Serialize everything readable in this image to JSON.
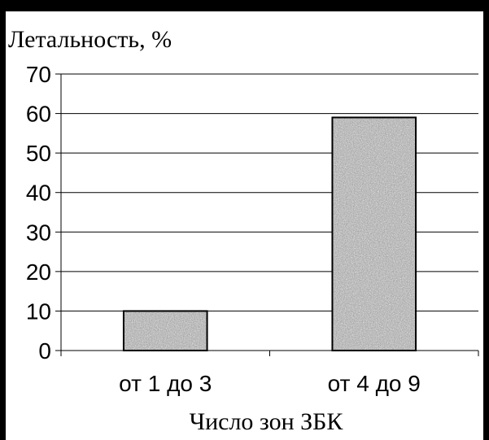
{
  "chart_data": {
    "type": "bar",
    "title": "",
    "ylabel": "Летальность, %",
    "xlabel": "Число зон ЗБК",
    "categories": [
      "от 1 до 3",
      "от 4 до 9"
    ],
    "values": [
      10,
      59
    ],
    "ylim": [
      0,
      70
    ],
    "yticks": [
      0,
      10,
      20,
      30,
      40,
      50,
      60,
      70
    ],
    "grid": "horizontal",
    "legend": "none",
    "colors": {
      "bar_fill": "#a8a8a8",
      "bar_stroke": "#000000",
      "grid": "#000000",
      "axis": "#000000",
      "text": "#000000"
    }
  }
}
